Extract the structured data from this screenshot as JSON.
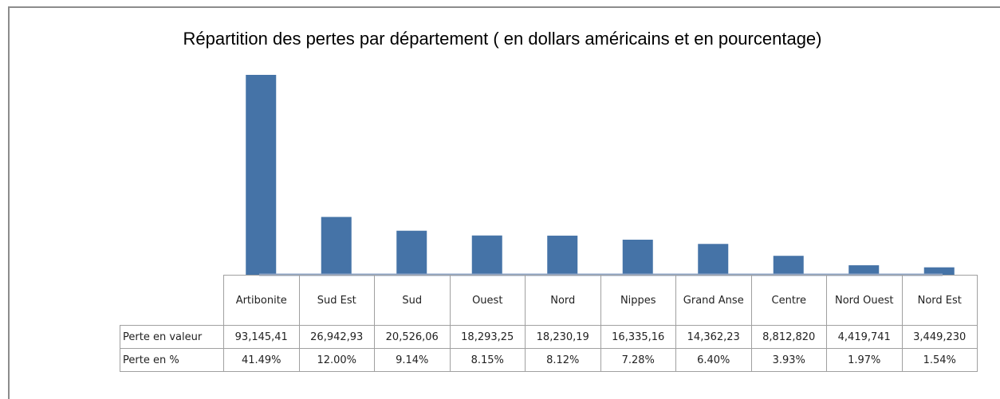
{
  "chart_data": {
    "type": "bar",
    "title": "Répartition des pertes par département ( en dollars américains et en pourcentage)",
    "categories": [
      "Artibonite",
      "Sud Est",
      "Sud",
      "Ouest",
      "Nord",
      "Nippes",
      "Grand Anse",
      "Centre",
      "Nord Ouest",
      "Nord Est"
    ],
    "series": [
      {
        "name": "Perte en %",
        "color": "#4573a7",
        "values": [
          41.49,
          12.0,
          9.14,
          8.15,
          8.12,
          7.28,
          6.4,
          3.93,
          1.97,
          1.54
        ],
        "value_labels": [
          "41.49%",
          "12.00%",
          "9.14%",
          "8.15%",
          "8.12%",
          "7.28%",
          "6.40%",
          "3.93%",
          "1.97%",
          "1.54%"
        ]
      }
    ],
    "table_row": {
      "name": "Perte en valeur",
      "cells": [
        "93,145,41",
        "26,942,93",
        "20,526,06",
        "18,293,25",
        "18,230,19",
        "16,335,16",
        "14,362,23",
        "8,812,820",
        "4,419,741",
        "3,449,230"
      ]
    }
  }
}
